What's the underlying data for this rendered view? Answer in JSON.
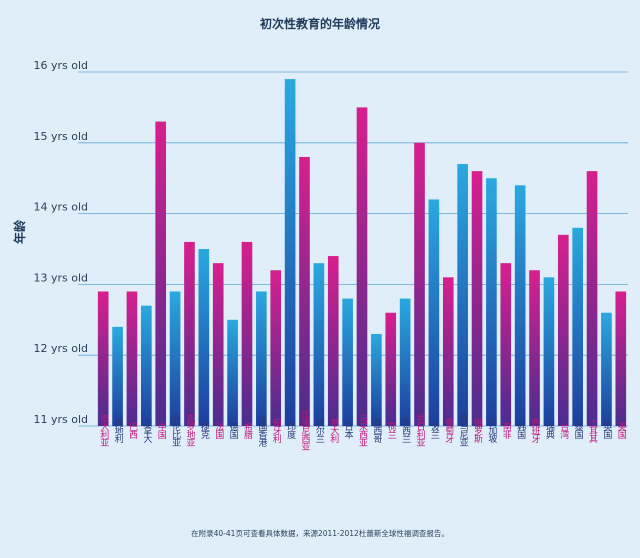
{
  "chart_data": {
    "type": "bar",
    "title": "初次性教育的年龄情况",
    "ylabel": "年龄",
    "xlabel": "",
    "ylim": [
      11,
      16
    ],
    "yticks": [
      11,
      12,
      13,
      14,
      15,
      16
    ],
    "ytick_labels": [
      "11 yrs old",
      "12 yrs old",
      "13 yrs old",
      "14 yrs old",
      "15 yrs old",
      "16 yrs old"
    ],
    "grid": true,
    "categories": [
      "澳大利亚",
      "奥地利",
      "巴西",
      "加拿大",
      "中国",
      "哥伦比亚",
      "克罗地亚",
      "捷克",
      "法国",
      "德国",
      "希腊",
      "中国香港",
      "匈牙利",
      "印度",
      "印度尼西亚",
      "爱尔兰",
      "意大利",
      "日本",
      "马来西亚",
      "墨西哥",
      "荷兰",
      "新西兰",
      "尼日利亚",
      "波兰",
      "葡萄牙",
      "罗马尼亚",
      "俄罗斯",
      "新加坡",
      "南非",
      "韩国",
      "西班牙",
      "瑞典",
      "台湾",
      "泰国",
      "土耳其",
      "英国",
      "美国"
    ],
    "values": [
      12.9,
      12.4,
      12.9,
      12.7,
      15.3,
      12.9,
      13.6,
      13.5,
      13.3,
      12.5,
      13.6,
      12.9,
      13.2,
      15.9,
      14.8,
      13.3,
      13.4,
      12.8,
      15.5,
      12.3,
      12.6,
      12.8,
      15.0,
      14.2,
      13.1,
      14.7,
      14.6,
      14.5,
      13.3,
      14.4,
      13.2,
      13.1,
      13.7,
      13.8,
      14.6,
      12.6,
      12.9
    ],
    "bar_colors": [
      "magenta",
      "blue",
      "magenta",
      "blue",
      "magenta",
      "blue",
      "magenta",
      "blue",
      "magenta",
      "blue",
      "magenta",
      "blue",
      "magenta",
      "blue",
      "magenta",
      "blue",
      "magenta",
      "blue",
      "magenta",
      "blue",
      "magenta",
      "blue",
      "magenta",
      "blue",
      "magenta",
      "blue",
      "magenta",
      "blue",
      "magenta",
      "blue",
      "magenta",
      "blue",
      "magenta",
      "blue",
      "magenta",
      "blue",
      "magenta"
    ],
    "footnote": "在附录40-41页可查看具体数据，来源2011-2012杜蕾斯全球性福调查报告。"
  },
  "colors": {
    "background": "#dfeef8",
    "grid": "#5fa8d8",
    "magenta_top": "#d81f8e",
    "magenta_bottom": "#4a2d8f",
    "blue_top": "#2aa9df",
    "blue_bottom": "#1d3e9e",
    "label_magenta": "#c2187c",
    "label_blue": "#2a3a7a"
  }
}
